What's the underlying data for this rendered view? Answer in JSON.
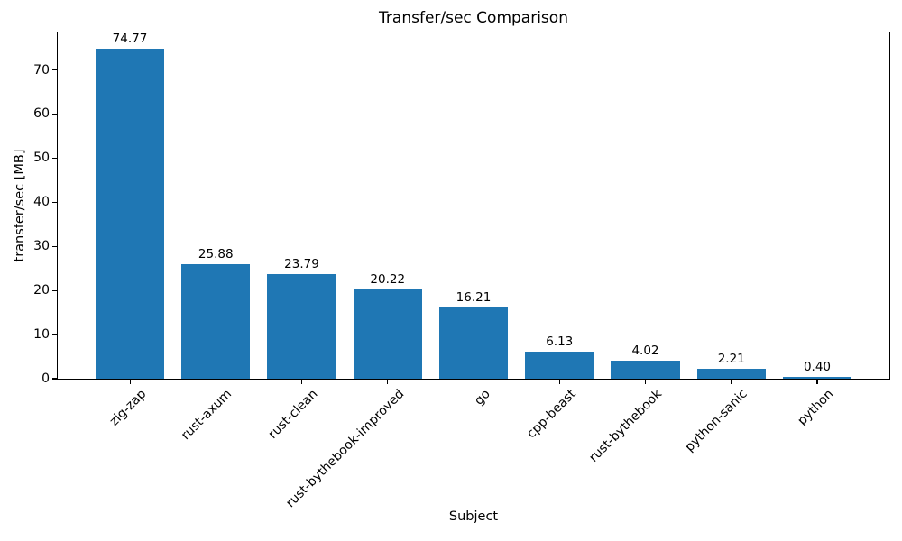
{
  "chart_data": {
    "type": "bar",
    "title": "Transfer/sec Comparison",
    "xlabel": "Subject",
    "ylabel": "transfer/sec [MB]",
    "categories": [
      "zig-zap",
      "rust-axum",
      "rust-clean",
      "rust-bythebook-improved",
      "go",
      "cpp-beast",
      "rust-bythebook",
      "python-sanic",
      "python"
    ],
    "values": [
      74.77,
      25.88,
      23.79,
      20.22,
      16.21,
      6.13,
      4.02,
      2.21,
      0.4
    ],
    "bar_labels": [
      "74.77",
      "25.88",
      "23.79",
      "20.22",
      "16.21",
      "6.13",
      "4.02",
      "2.21",
      "0.40"
    ],
    "yticks": [
      0,
      10,
      20,
      30,
      40,
      50,
      60,
      70
    ],
    "ylim": [
      0,
      78.5
    ],
    "bar_color": "#1f77b4",
    "grid": false,
    "legend": "none",
    "x_tick_rotation_deg": 45,
    "bar_width_fraction": 0.8
  }
}
